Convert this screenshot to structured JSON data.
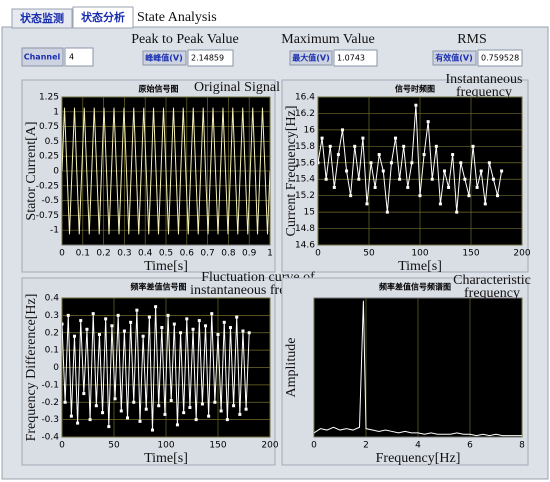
{
  "tabs": [
    "状态监测",
    "状态分析"
  ],
  "heading": "State Analysis",
  "channel": {
    "label": "Channel",
    "value": 4
  },
  "indicators": [
    {
      "caption": "Peak to Peak Value",
      "label": "峰峰值(V)",
      "value": 2.14859
    },
    {
      "caption": "Maximum Value",
      "label": "最大值(V)",
      "value": 1.0743
    },
    {
      "caption": "RMS",
      "label": "有效值(V)",
      "value": 0.759528
    }
  ],
  "chart_data": [
    {
      "type": "line",
      "title": "原始信号图",
      "annotation": [
        "Original Signal"
      ],
      "xlabel": "Time[s]",
      "ylabel": "Stator Current[A]",
      "color": "#f4f0b8",
      "markers": false,
      "grid": true,
      "xlim": [
        0,
        1
      ],
      "ylim": [
        -1.25,
        1.25
      ],
      "xticks": [
        0,
        0.1,
        0.2,
        0.3,
        0.4,
        0.5,
        0.6,
        0.7,
        0.8,
        0.9,
        1
      ],
      "yticks": [
        1.25,
        1,
        0.75,
        0.5,
        0.25,
        0,
        -0.25,
        -0.5,
        -0.75,
        -1
      ],
      "x": [
        0,
        0.012,
        0.024,
        0.036,
        0.048,
        0.06,
        0.071,
        0.083,
        0.095,
        0.107,
        0.119,
        0.131,
        0.143,
        0.155,
        0.167,
        0.179,
        0.19,
        0.202,
        0.214,
        0.226,
        0.238,
        0.25,
        0.262,
        0.274,
        0.286,
        0.298,
        0.31,
        0.321,
        0.333,
        0.345,
        0.357,
        0.369,
        0.381,
        0.393,
        0.405,
        0.417,
        0.429,
        0.44,
        0.452,
        0.464,
        0.476,
        0.488,
        0.5,
        0.512,
        0.524,
        0.536,
        0.548,
        0.56,
        0.571,
        0.583,
        0.595,
        0.607,
        0.619,
        0.631,
        0.643,
        0.655,
        0.667,
        0.679,
        0.69,
        0.702,
        0.714,
        0.726,
        0.738,
        0.75,
        0.762,
        0.774,
        0.786,
        0.798,
        0.81,
        0.821,
        0.833,
        0.845,
        0.857,
        0.869,
        0.881,
        0.893,
        0.905,
        0.917,
        0.929,
        0.94,
        0.952,
        0.964,
        0.976,
        0.988,
        1
      ],
      "values": [
        0,
        1.07,
        0,
        -1.07,
        0,
        1.07,
        0,
        -1.07,
        0,
        1.07,
        0,
        -1.07,
        0,
        1.07,
        0,
        -1.07,
        0,
        1.07,
        0,
        -1.07,
        0,
        1.07,
        0,
        -1.07,
        0,
        1.07,
        0,
        -1.07,
        0,
        1.07,
        0,
        -1.07,
        0,
        1.07,
        0,
        -1.07,
        0,
        1.07,
        0,
        -1.07,
        0,
        1.07,
        0,
        -1.07,
        0,
        1.07,
        0,
        -1.07,
        0,
        1.07,
        0,
        -1.07,
        0,
        1.07,
        0,
        -1.07,
        0,
        1.07,
        0,
        -1.07,
        0,
        1.07,
        0,
        -1.07,
        0,
        1.07,
        0,
        -1.07,
        0,
        1.07,
        0,
        -1.07,
        0,
        1.07,
        0,
        -1.07,
        0,
        1.07,
        0,
        -1.07,
        0,
        1.07,
        0,
        -1.07,
        0
      ]
    },
    {
      "type": "line",
      "title": "信号时频图",
      "annotation": [
        "Instantaneous",
        "frequency"
      ],
      "xlabel": "Time[s]",
      "ylabel": "Current Frequency[Hz]",
      "color": "#ffffff",
      "markers": true,
      "grid": true,
      "xlim": [
        0,
        200
      ],
      "ylim": [
        14.6,
        16.4
      ],
      "xticks": [
        0,
        50,
        100,
        150,
        200
      ],
      "yticks": [
        16.4,
        16.2,
        16,
        15.8,
        15.6,
        15.4,
        15.2,
        15,
        14.8,
        14.6
      ],
      "x": [
        0,
        4,
        8,
        12,
        16,
        20,
        24,
        28,
        32,
        36,
        40,
        44,
        48,
        52,
        56,
        60,
        64,
        68,
        72,
        76,
        80,
        84,
        88,
        92,
        96,
        100,
        104,
        108,
        112,
        116,
        120,
        124,
        128,
        132,
        136,
        140,
        144,
        148,
        152,
        156,
        160,
        164,
        168,
        172,
        176,
        180
      ],
      "values": [
        15.6,
        15.9,
        15.4,
        15.8,
        15.3,
        15.7,
        16.0,
        15.5,
        15.2,
        15.8,
        15.4,
        15.9,
        15.1,
        15.6,
        15.3,
        15.7,
        15.5,
        15.0,
        15.6,
        15.9,
        15.4,
        15.8,
        15.3,
        15.6,
        16.3,
        15.2,
        15.7,
        16.1,
        15.4,
        15.8,
        15.1,
        15.5,
        15.3,
        15.7,
        15.0,
        15.6,
        15.4,
        15.2,
        15.8,
        15.3,
        15.5,
        15.1,
        15.6,
        15.4,
        15.2,
        15.5
      ]
    },
    {
      "type": "line",
      "title": "频率差值信号图",
      "annotation": [
        "Fluctuation curve of",
        "instantaneous frequency"
      ],
      "xlabel": "Time[s]",
      "ylabel": "Frequency Difference[Hz]",
      "color": "#ffffff",
      "markers": true,
      "grid": true,
      "xlim": [
        0,
        200
      ],
      "ylim": [
        -0.4,
        0.4
      ],
      "xticks": [
        0,
        50,
        100,
        150,
        200
      ],
      "yticks": [
        0.4,
        0.3,
        0.2,
        0.1,
        0,
        -0.1,
        -0.2,
        -0.3,
        -0.4
      ],
      "x": [
        0,
        3,
        6,
        9,
        12,
        15,
        18,
        21,
        24,
        27,
        30,
        33,
        36,
        39,
        42,
        45,
        48,
        51,
        54,
        57,
        60,
        63,
        66,
        69,
        72,
        75,
        78,
        81,
        84,
        87,
        90,
        93,
        96,
        99,
        102,
        105,
        108,
        111,
        114,
        117,
        120,
        123,
        126,
        129,
        132,
        135,
        138,
        141,
        144,
        147,
        150,
        153,
        156,
        159,
        162,
        165,
        168,
        171,
        174,
        177,
        180
      ],
      "values": [
        0.25,
        -0.2,
        0.3,
        -0.28,
        0.18,
        -0.32,
        0.27,
        -0.15,
        0.22,
        -0.3,
        0.31,
        -0.22,
        0.19,
        -0.26,
        0.28,
        -0.34,
        0.24,
        -0.18,
        0.3,
        -0.25,
        0.21,
        -0.29,
        0.26,
        -0.2,
        0.33,
        -0.31,
        0.18,
        -0.24,
        0.29,
        -0.36,
        0.35,
        -0.22,
        0.23,
        -0.27,
        0.3,
        -0.19,
        0.25,
        -0.33,
        0.2,
        -0.26,
        0.28,
        -0.23,
        0.22,
        -0.3,
        0.27,
        -0.21,
        0.24,
        -0.28,
        0.31,
        -0.2,
        0.19,
        -0.25,
        0.26,
        -0.3,
        0.23,
        -0.22,
        0.29,
        -0.27,
        0.21,
        -0.24,
        0.2
      ]
    },
    {
      "type": "line",
      "title": "频率差值信号频谱图",
      "annotation": [
        "Characteristic",
        "frequency"
      ],
      "xlabel": "Frequency[Hz]",
      "ylabel": "Amplitude",
      "color": "#ffffff",
      "markers": false,
      "grid": true,
      "xlim": [
        0,
        8
      ],
      "ylim": [
        0,
        1
      ],
      "xticks": [
        0,
        2,
        4,
        6,
        8
      ],
      "x": [
        0,
        0.25,
        0.5,
        0.75,
        1,
        1.25,
        1.5,
        1.75,
        1.9,
        2,
        2.25,
        2.5,
        2.75,
        3,
        3.25,
        3.5,
        3.75,
        4,
        4.25,
        4.5,
        4.75,
        5,
        5.25,
        5.5,
        5.75,
        6,
        6.25,
        6.5,
        6.75,
        7,
        7.25,
        7.5,
        7.75,
        8
      ],
      "values": [
        0.03,
        0.06,
        0.05,
        0.07,
        0.05,
        0.06,
        0.05,
        0.07,
        0.98,
        0.06,
        0.05,
        0.04,
        0.05,
        0.04,
        0.03,
        0.04,
        0.03,
        0.03,
        0.02,
        0.03,
        0.02,
        0.02,
        0.02,
        0.03,
        0.02,
        0.02,
        0.01,
        0.02,
        0.01,
        0.02,
        0.01,
        0.01,
        0.01,
        0.01
      ]
    }
  ]
}
